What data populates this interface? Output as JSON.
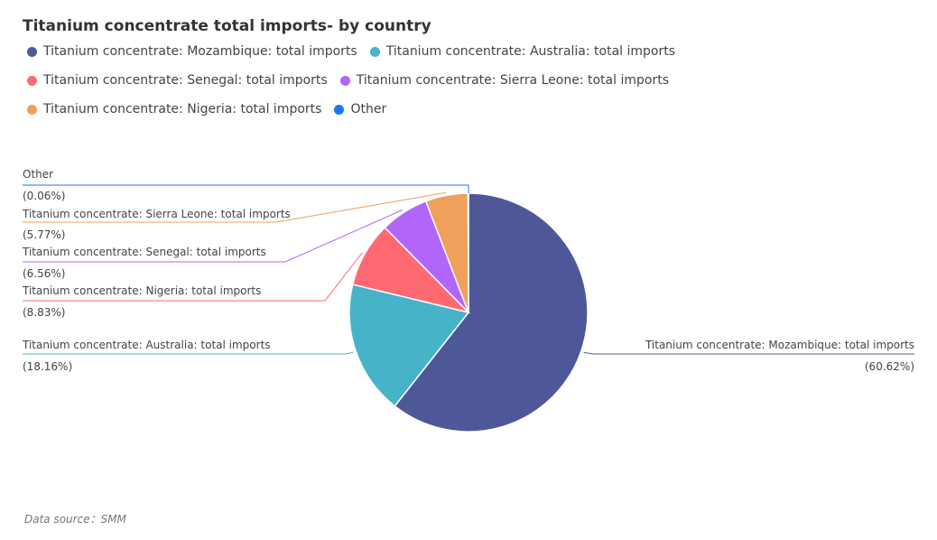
{
  "chart_data": {
    "type": "pie",
    "title": "Titanium concentrate total imports- by country",
    "legend": [
      {
        "label": "Titanium concentrate: Mozambique: total imports",
        "color": "#4e5899"
      },
      {
        "label": "Titanium concentrate: Australia: total imports",
        "color": "#47b3c9"
      },
      {
        "label": "Titanium concentrate: Senegal: total imports",
        "color": "#ff6a72"
      },
      {
        "label": "Titanium concentrate: Sierra Leone: total imports",
        "color": "#b166f9"
      },
      {
        "label": "Titanium concentrate: Nigeria: total imports",
        "color": "#f0a05a"
      },
      {
        "label": "Other",
        "color": "#1677ff"
      }
    ],
    "slices": [
      {
        "label": "Titanium concentrate: Mozambique: total imports",
        "value": 60.62,
        "pct": "(60.62%)",
        "color": "#4e5899"
      },
      {
        "label": "Titanium concentrate: Australia: total imports",
        "value": 18.16,
        "pct": "(18.16%)",
        "color": "#47b3c9"
      },
      {
        "label": "Titanium concentrate: Nigeria: total imports",
        "value": 8.83,
        "pct": "(8.83%)",
        "color": "#ff6a72"
      },
      {
        "label": "Titanium concentrate: Senegal: total imports",
        "value": 6.56,
        "pct": "(6.56%)",
        "color": "#b166f9"
      },
      {
        "label": "Titanium concentrate: Sierra Leone: total imports",
        "value": 5.77,
        "pct": "(5.77%)",
        "color": "#f0a05a"
      },
      {
        "label": "Other",
        "value": 0.06,
        "pct": "(0.06%)",
        "color": "#1677ff"
      }
    ],
    "legend_position": "top-left"
  },
  "footer": {
    "source": "Data source：SMM"
  }
}
